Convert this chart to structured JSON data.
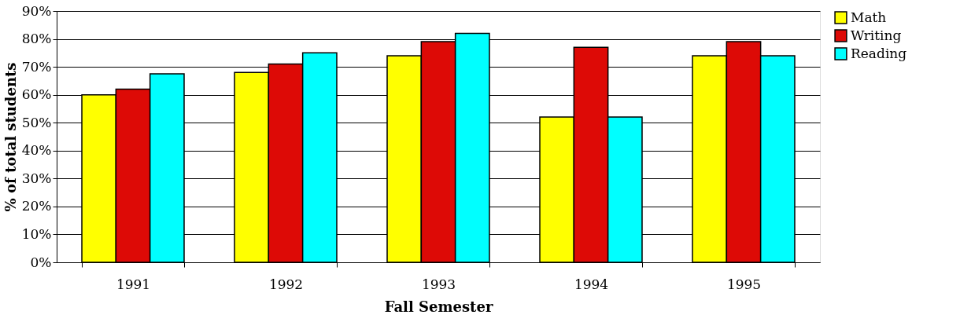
{
  "chart_data": {
    "type": "bar",
    "xlabel": "Fall Semester",
    "ylabel": "% of total students",
    "categories": [
      "1991",
      "1992",
      "1993",
      "1994",
      "1995"
    ],
    "series": [
      {
        "name": "Math",
        "color": "#ffff00",
        "values": [
          60,
          68,
          74,
          52,
          74
        ]
      },
      {
        "name": "Writing",
        "color": "#dd0a06",
        "values": [
          62,
          71,
          79,
          77,
          79
        ]
      },
      {
        "name": "Reading",
        "color": "#00ffff",
        "values": [
          67.5,
          75,
          82,
          52,
          74
        ]
      }
    ],
    "ylim": [
      0,
      90
    ],
    "yticks": [
      {
        "value": 0,
        "label": "0%"
      },
      {
        "value": 10,
        "label": "10%"
      },
      {
        "value": 20,
        "label": "20%"
      },
      {
        "value": 30,
        "label": "30%"
      },
      {
        "value": 40,
        "label": "40%"
      },
      {
        "value": 50,
        "label": "50%"
      },
      {
        "value": 60,
        "label": "60%"
      },
      {
        "value": 70,
        "label": "70%"
      },
      {
        "value": 80,
        "label": "80%"
      },
      {
        "value": 90,
        "label": "90%"
      }
    ],
    "grid": "y",
    "legend": "right"
  }
}
